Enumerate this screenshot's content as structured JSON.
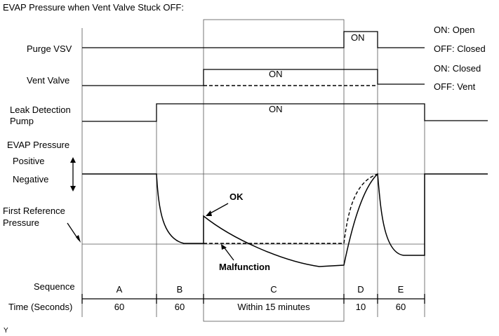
{
  "title": "EVAP Pressure when Vent Valve Stuck OFF:",
  "signals": {
    "purge_vsv": "Purge VSV",
    "vent_valve": "Vent Valve",
    "leak_pump_line1": "Leak Detection",
    "leak_pump_line2": "Pump",
    "evap_pressure": "EVAP Pressure",
    "positive": "Positive",
    "negative": "Negative",
    "first_ref_line1": "First Reference",
    "first_ref_line2": "Pressure"
  },
  "states": {
    "purge_on": "ON",
    "vent_on": "ON",
    "pump_on": "ON"
  },
  "legend": {
    "purge_on": "ON: Open",
    "purge_off": "OFF: Closed",
    "vent_on": "ON: Closed",
    "vent_off": "OFF: Vent"
  },
  "annotations": {
    "ok": "OK",
    "malfunction": "Malfunction"
  },
  "sequence": {
    "label": "Sequence",
    "items": [
      "A",
      "B",
      "C",
      "D",
      "E"
    ]
  },
  "time": {
    "label": "Time (Seconds)",
    "items": [
      "60",
      "60",
      "Within 15 minutes",
      "10",
      "60"
    ]
  },
  "footnote": "Y"
}
